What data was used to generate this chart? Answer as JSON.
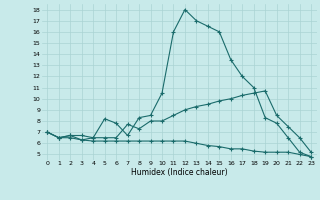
{
  "title": "",
  "xlabel": "Humidex (Indice chaleur)",
  "background_color": "#c8eaea",
  "grid_color": "#aad4d4",
  "line_color": "#1a6b6b",
  "xlim": [
    -0.5,
    23.5
  ],
  "ylim": [
    4.5,
    18.5
  ],
  "xticks": [
    0,
    1,
    2,
    3,
    4,
    5,
    6,
    7,
    8,
    9,
    10,
    11,
    12,
    13,
    14,
    15,
    16,
    17,
    18,
    19,
    20,
    21,
    22,
    23
  ],
  "yticks": [
    5,
    6,
    7,
    8,
    9,
    10,
    11,
    12,
    13,
    14,
    15,
    16,
    17,
    18
  ],
  "line1_x": [
    0,
    1,
    2,
    3,
    4,
    5,
    6,
    7,
    8,
    9,
    10,
    11,
    12,
    13,
    14,
    15,
    16,
    17,
    18,
    19,
    20,
    21,
    22,
    23
  ],
  "line1_y": [
    7.0,
    6.5,
    6.5,
    6.3,
    6.5,
    8.2,
    7.8,
    6.7,
    8.3,
    8.5,
    10.5,
    16.0,
    18.0,
    17.0,
    16.5,
    16.0,
    13.5,
    12.0,
    11.0,
    8.3,
    7.8,
    6.5,
    5.2,
    4.8
  ],
  "line2_x": [
    0,
    1,
    2,
    3,
    4,
    5,
    6,
    7,
    8,
    9,
    10,
    11,
    12,
    13,
    14,
    15,
    16,
    17,
    18,
    19,
    20,
    21,
    22,
    23
  ],
  "line2_y": [
    7.0,
    6.5,
    6.7,
    6.7,
    6.5,
    6.5,
    6.5,
    7.7,
    7.3,
    8.0,
    8.0,
    8.5,
    9.0,
    9.3,
    9.5,
    9.8,
    10.0,
    10.3,
    10.5,
    10.7,
    8.5,
    7.5,
    6.5,
    5.2
  ],
  "line3_x": [
    0,
    1,
    2,
    3,
    4,
    5,
    6,
    7,
    8,
    9,
    10,
    11,
    12,
    13,
    14,
    15,
    16,
    17,
    18,
    19,
    20,
    21,
    22,
    23
  ],
  "line3_y": [
    7.0,
    6.5,
    6.7,
    6.3,
    6.2,
    6.2,
    6.2,
    6.2,
    6.2,
    6.2,
    6.2,
    6.2,
    6.2,
    6.0,
    5.8,
    5.7,
    5.5,
    5.5,
    5.3,
    5.2,
    5.2,
    5.2,
    5.0,
    4.8
  ]
}
